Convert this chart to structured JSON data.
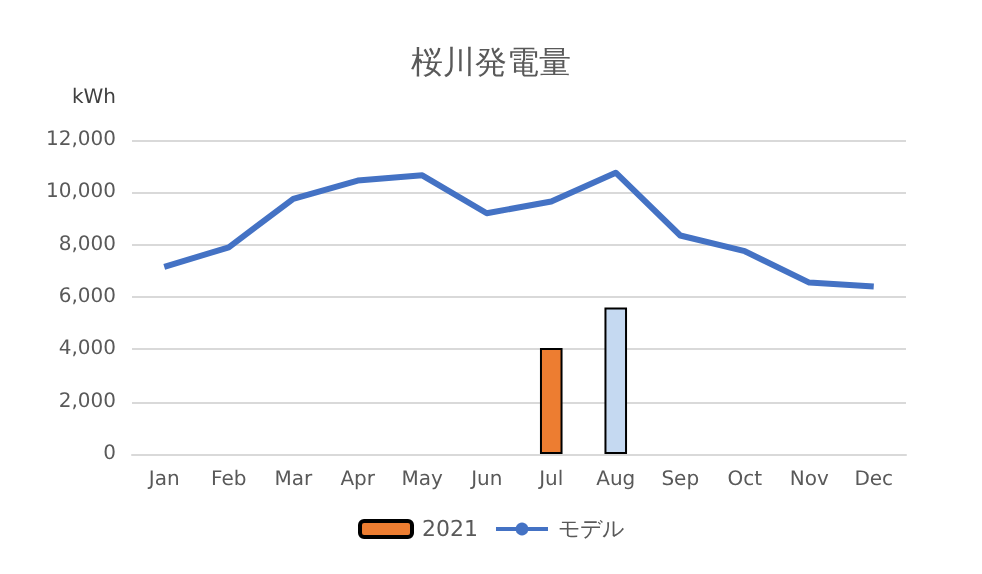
{
  "chart_data": {
    "type": "bar",
    "title": "桜川発電量",
    "ylabel": "kWh",
    "categories": [
      "Jan",
      "Feb",
      "Mar",
      "Apr",
      "May",
      "Jun",
      "Jul",
      "Aug",
      "Sep",
      "Oct",
      "Nov",
      "Dec"
    ],
    "series": [
      {
        "name": "2021",
        "color": "#ed7d31",
        "colors": [
          null,
          null,
          null,
          null,
          null,
          null,
          "#ed7d31",
          "#c5d9f1",
          null,
          null,
          null,
          null
        ],
        "values": [
          null,
          null,
          null,
          null,
          null,
          null,
          4050,
          5600,
          null,
          null,
          null,
          null
        ]
      },
      {
        "name": "モデル",
        "type": "line",
        "color": "#4472c4",
        "values": [
          7150,
          7900,
          9750,
          10450,
          10650,
          9200,
          9650,
          10750,
          8350,
          7750,
          6550,
          6400
        ]
      }
    ],
    "ylim": [
      0,
      12000
    ],
    "yticks": [
      0,
      {
        "value": 2000,
        "label": "2,000"
      },
      {
        "value": 4000,
        "label": "4,000"
      },
      {
        "value": 6000,
        "label": "6,000"
      },
      {
        "value": 8000,
        "label": "8,000"
      },
      {
        "value": 10000,
        "label": "10,000"
      },
      {
        "value": 12000,
        "label": "12,000"
      }
    ],
    "grid": "y",
    "legend": "bottom",
    "marker": "none"
  }
}
